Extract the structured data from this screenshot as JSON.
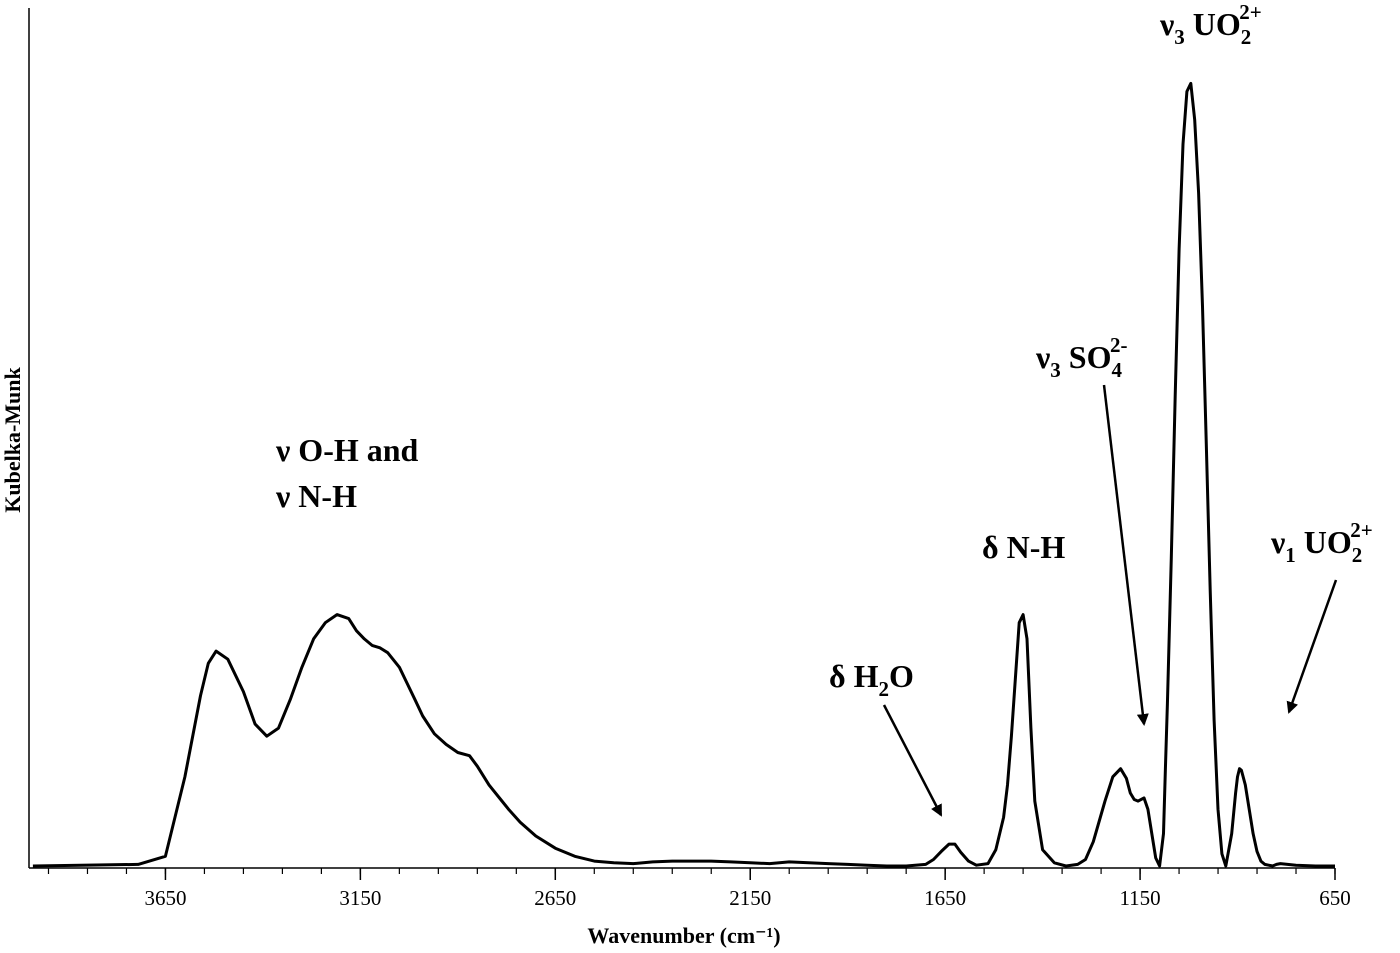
{
  "chart_data": {
    "type": "line",
    "title": "",
    "xlabel": "Wavenumber (cm⁻¹)",
    "ylabel": "Kubelka-Munk",
    "xlim": [
      4000,
      650
    ],
    "x_reversed": true,
    "ylim": [
      0,
      1.0
    ],
    "x_ticks": [
      3650,
      3150,
      2650,
      2150,
      1650,
      1150,
      650
    ],
    "x_tick_labels": [
      "3650",
      "3150",
      "2650",
      "2150",
      "1650",
      "1150",
      "650"
    ],
    "y_ticks_shown": false,
    "grid": false,
    "line_color": "#000000",
    "series": [
      {
        "x": [
          3990,
          3720,
          3650,
          3600,
          3560,
          3540,
          3520,
          3490,
          3450,
          3420,
          3390,
          3360,
          3330,
          3300,
          3270,
          3240,
          3210,
          3180,
          3160,
          3140,
          3120,
          3100,
          3080,
          3050,
          3030,
          3010,
          2990,
          2960,
          2930,
          2900,
          2870,
          2850,
          2820,
          2810,
          2790,
          2770,
          2740,
          2700,
          2650,
          2600,
          2550,
          2500,
          2450,
          2400,
          2350,
          2300,
          2250,
          2200,
          2150,
          2100,
          2050,
          2000,
          1950,
          1900,
          1850,
          1800,
          1750,
          1700,
          1680,
          1660,
          1640,
          1625,
          1610,
          1590,
          1570,
          1540,
          1520,
          1500,
          1490,
          1480,
          1470,
          1460,
          1450,
          1440,
          1430,
          1420,
          1400,
          1370,
          1340,
          1310,
          1290,
          1270,
          1240,
          1220,
          1200,
          1185,
          1175,
          1165,
          1155,
          1140,
          1130,
          1120,
          1110,
          1100,
          1090,
          1085,
          1080,
          1070,
          1060,
          1050,
          1040,
          1030,
          1020,
          1010,
          1000,
          990,
          980,
          970,
          960,
          950,
          940,
          930,
          915,
          905,
          900,
          895,
          890,
          880,
          870,
          860,
          850,
          840,
          830,
          820,
          810,
          800,
          790,
          750,
          700,
          650
        ],
        "y": [
          0.0,
          0.002,
          0.012,
          0.11,
          0.21,
          0.25,
          0.265,
          0.255,
          0.215,
          0.175,
          0.16,
          0.17,
          0.205,
          0.245,
          0.28,
          0.3,
          0.31,
          0.305,
          0.29,
          0.28,
          0.272,
          0.269,
          0.263,
          0.245,
          0.225,
          0.205,
          0.185,
          0.163,
          0.15,
          0.14,
          0.136,
          0.123,
          0.1,
          0.094,
          0.082,
          0.07,
          0.054,
          0.037,
          0.022,
          0.012,
          0.006,
          0.004,
          0.003,
          0.005,
          0.006,
          0.006,
          0.006,
          0.005,
          0.004,
          0.003,
          0.005,
          0.004,
          0.003,
          0.002,
          0.001,
          0.0,
          0.0,
          0.002,
          0.008,
          0.018,
          0.027,
          0.027,
          0.017,
          0.006,
          0.001,
          0.003,
          0.02,
          0.06,
          0.1,
          0.16,
          0.23,
          0.3,
          0.31,
          0.28,
          0.17,
          0.08,
          0.02,
          0.004,
          0.0,
          0.002,
          0.008,
          0.03,
          0.08,
          0.11,
          0.12,
          0.108,
          0.09,
          0.082,
          0.08,
          0.084,
          0.07,
          0.04,
          0.01,
          0.0,
          0.04,
          0.12,
          0.2,
          0.38,
          0.58,
          0.76,
          0.89,
          0.955,
          0.965,
          0.92,
          0.83,
          0.69,
          0.52,
          0.34,
          0.18,
          0.07,
          0.015,
          0.0,
          0.04,
          0.09,
          0.11,
          0.12,
          0.118,
          0.1,
          0.07,
          0.04,
          0.018,
          0.006,
          0.002,
          0.001,
          0.0,
          0.002,
          0.003,
          0.001,
          0.0,
          0.0
        ]
      }
    ],
    "annotations": [
      {
        "id": "oh-nh-line1",
        "text": "ν O-H and"
      },
      {
        "id": "oh-nh-line2",
        "text": "ν N-H"
      },
      {
        "id": "h2o",
        "base": "δ H",
        "sub": "2",
        "tail": "O"
      },
      {
        "id": "nh-bend",
        "text": "δ N-H"
      },
      {
        "id": "so4",
        "base": "ν",
        "sub1": "3",
        "mid": " SO",
        "sub2": "4",
        "sup": "2-"
      },
      {
        "id": "uo2-v3",
        "base": "ν",
        "sub1": "3",
        "mid": " UO",
        "sub2": "2",
        "sup": "2+"
      },
      {
        "id": "uo2-v1",
        "base": "ν",
        "sub1": "1",
        "mid": " UO",
        "sub2": "2",
        "sup": "2+"
      }
    ]
  }
}
